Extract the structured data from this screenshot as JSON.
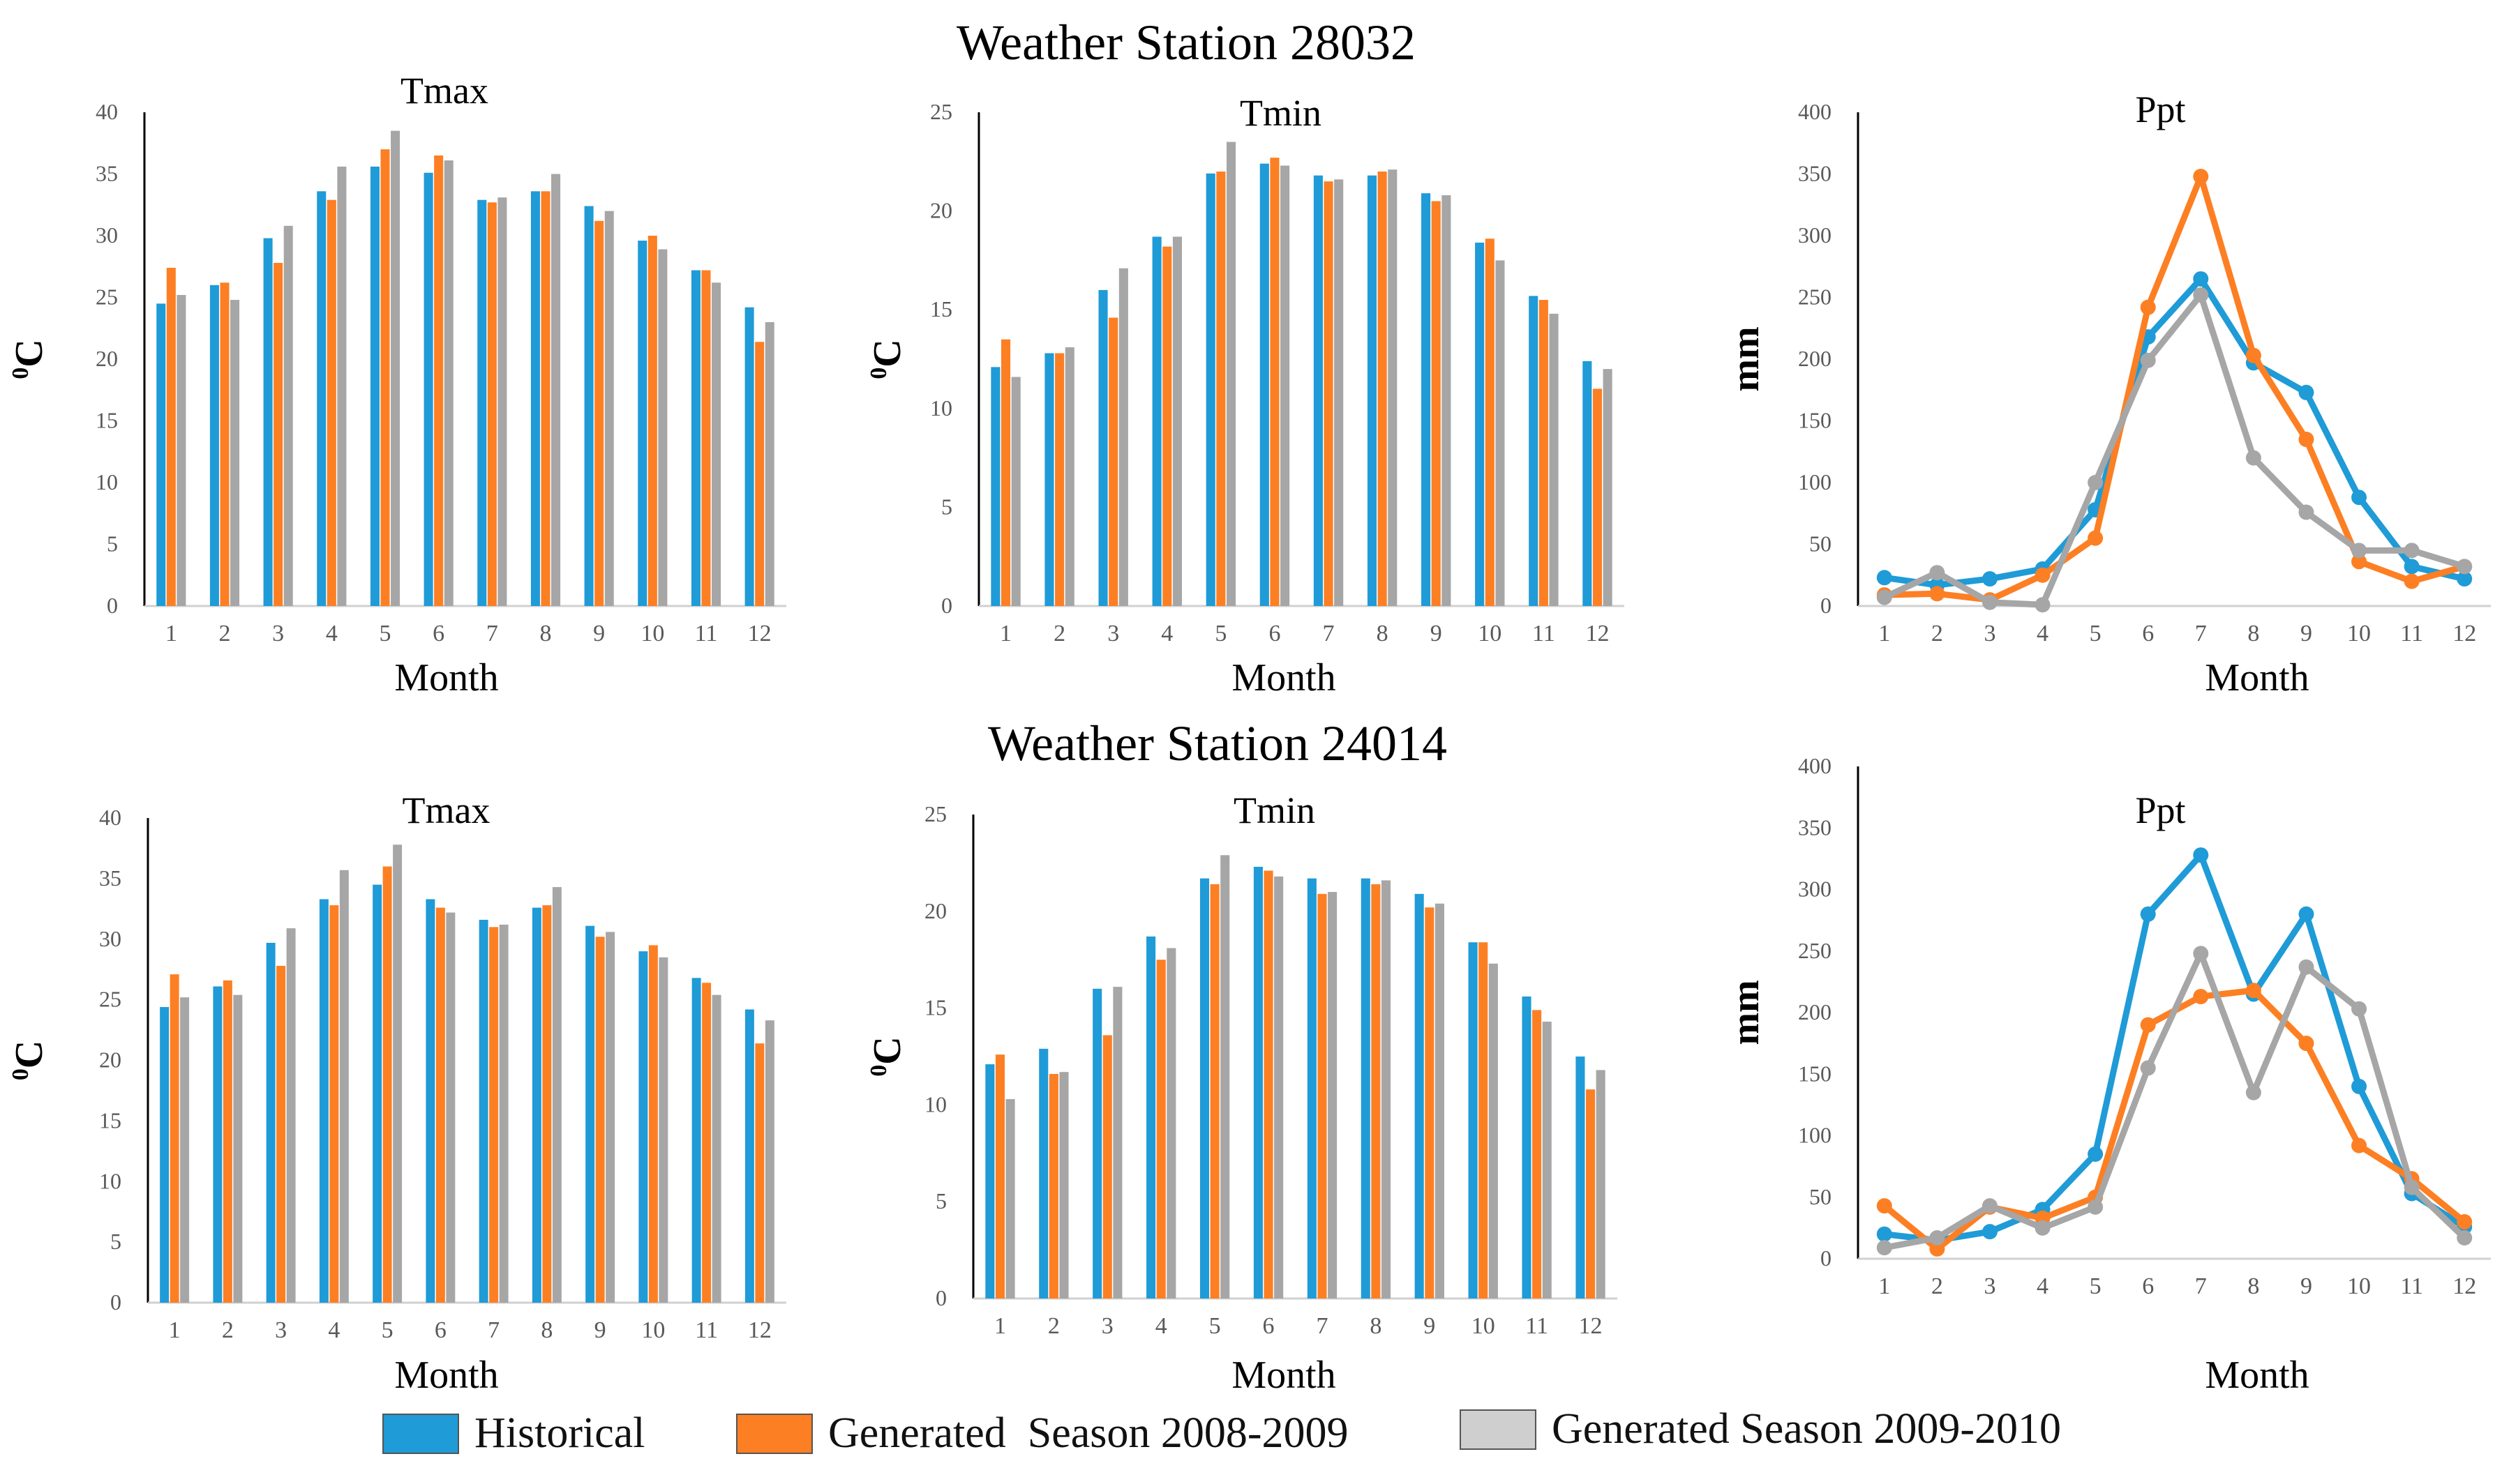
{
  "titles": [
    "Weather Station 28032",
    "Weather Station 24014"
  ],
  "legend": [
    {
      "label": "Historical",
      "color": "#1f9bd7"
    },
    {
      "label": "Generated  Season 2008-2009",
      "color": "#fd7f23"
    },
    {
      "label": "Generated Season 2009-2010",
      "color": "#cfcfcf"
    }
  ],
  "chart_data": [
    {
      "station": "Weather Station 28032",
      "type": "bar",
      "title": "Tmax",
      "xlabel": "Month",
      "ylabel": "0C",
      "ylim": [
        0,
        40
      ],
      "yticks": [
        0,
        5,
        10,
        15,
        20,
        25,
        30,
        35,
        40
      ],
      "categories": [
        "1",
        "2",
        "3",
        "4",
        "5",
        "6",
        "7",
        "8",
        "9",
        "10",
        "11",
        "12"
      ],
      "series": [
        {
          "name": "Historical",
          "values": [
            24.5,
            26,
            29.8,
            33.6,
            35.6,
            35.1,
            32.9,
            33.6,
            32.4,
            29.6,
            27.2,
            24.2
          ]
        },
        {
          "name": "Generated Season 2008-2009",
          "values": [
            27.4,
            26.2,
            27.8,
            32.9,
            37,
            36.5,
            32.7,
            33.6,
            31.2,
            30,
            27.2,
            21.4
          ]
        },
        {
          "name": "Generated Season 2009-2010",
          "values": [
            25.2,
            24.8,
            30.8,
            35.6,
            38.5,
            36.1,
            33.1,
            35,
            32,
            28.9,
            26.2,
            23
          ]
        }
      ]
    },
    {
      "station": "Weather Station 28032",
      "type": "bar",
      "title": "Tmin",
      "xlabel": "Month",
      "ylabel": "0C",
      "ylim": [
        0,
        25
      ],
      "yticks": [
        0,
        5,
        10,
        15,
        20,
        25
      ],
      "categories": [
        "1",
        "2",
        "3",
        "4",
        "5",
        "6",
        "7",
        "8",
        "9",
        "10",
        "11",
        "12"
      ],
      "series": [
        {
          "name": "Historical",
          "values": [
            12.1,
            12.8,
            16,
            18.7,
            21.9,
            22.4,
            21.8,
            21.8,
            20.9,
            18.4,
            15.7,
            12.4
          ]
        },
        {
          "name": "Generated Season 2008-2009",
          "values": [
            13.5,
            12.8,
            14.6,
            18.2,
            22,
            22.7,
            21.5,
            22,
            20.5,
            18.6,
            15.5,
            11
          ]
        },
        {
          "name": "Generated Season 2009-2010",
          "values": [
            11.6,
            13.1,
            17.1,
            18.7,
            23.5,
            22.3,
            21.6,
            22.1,
            20.8,
            17.5,
            14.8,
            12
          ]
        }
      ]
    },
    {
      "station": "Weather Station 28032",
      "type": "line",
      "title": "Ppt",
      "xlabel": "Month",
      "ylabel": "mm",
      "ylim": [
        0,
        400
      ],
      "yticks": [
        0,
        50,
        100,
        150,
        200,
        250,
        300,
        350,
        400
      ],
      "categories": [
        "1",
        "2",
        "3",
        "4",
        "5",
        "6",
        "7",
        "8",
        "9",
        "10",
        "11",
        "12"
      ],
      "series": [
        {
          "name": "Historical",
          "values": [
            23,
            17,
            22,
            30,
            78,
            218,
            265,
            197,
            173,
            88,
            32,
            22
          ]
        },
        {
          "name": "Generated Season 2008-2009",
          "values": [
            9,
            10,
            5,
            25,
            55,
            242,
            348,
            203,
            135,
            36,
            20,
            32
          ]
        },
        {
          "name": "Generated Season 2009-2010",
          "values": [
            7,
            27,
            3,
            1,
            100,
            199,
            252,
            120,
            76,
            45,
            45,
            32
          ]
        }
      ]
    },
    {
      "station": "Weather Station 24014",
      "type": "bar",
      "title": "Tmax",
      "xlabel": "Month",
      "ylabel": "0C",
      "ylim": [
        0,
        40
      ],
      "yticks": [
        0,
        5,
        10,
        15,
        20,
        25,
        30,
        35,
        40
      ],
      "categories": [
        "1",
        "2",
        "3",
        "4",
        "5",
        "6",
        "7",
        "8",
        "9",
        "10",
        "11",
        "12"
      ],
      "series": [
        {
          "name": "Historical",
          "values": [
            24.4,
            26.1,
            29.7,
            33.3,
            34.5,
            33.3,
            31.6,
            32.6,
            31.1,
            29,
            26.8,
            24.2
          ]
        },
        {
          "name": "Generated Season 2008-2009",
          "values": [
            27.1,
            26.6,
            27.8,
            32.8,
            36,
            32.6,
            31,
            32.8,
            30.2,
            29.5,
            26.4,
            21.4
          ]
        },
        {
          "name": "Generated Season 2009-2010",
          "values": [
            25.2,
            25.4,
            30.9,
            35.7,
            37.8,
            32.2,
            31.2,
            34.3,
            30.6,
            28.5,
            25.4,
            23.3
          ]
        }
      ]
    },
    {
      "station": "Weather Station 24014",
      "type": "bar",
      "title": "Tmin",
      "xlabel": "Month",
      "ylabel": "0C",
      "ylim": [
        0,
        25
      ],
      "yticks": [
        0,
        5,
        10,
        15,
        20,
        25
      ],
      "categories": [
        "1",
        "2",
        "3",
        "4",
        "5",
        "6",
        "7",
        "8",
        "9",
        "10",
        "11",
        "12"
      ],
      "series": [
        {
          "name": "Historical",
          "values": [
            12.1,
            12.9,
            16,
            18.7,
            21.7,
            22.3,
            21.7,
            21.7,
            20.9,
            18.4,
            15.6,
            12.5
          ]
        },
        {
          "name": "Generated Season 2008-2009",
          "values": [
            12.6,
            11.6,
            13.6,
            17.5,
            21.4,
            22.1,
            20.9,
            21.4,
            20.2,
            18.4,
            14.9,
            10.8
          ]
        },
        {
          "name": "Generated Season 2009-2010",
          "values": [
            10.3,
            11.7,
            16.1,
            18.1,
            22.9,
            21.8,
            21,
            21.6,
            20.4,
            17.3,
            14.3,
            11.8
          ]
        }
      ]
    },
    {
      "station": "Weather Station 24014",
      "type": "line",
      "title": "Ppt",
      "xlabel": "Month",
      "ylabel": "mm",
      "ylim": [
        0,
        400
      ],
      "yticks": [
        0,
        50,
        100,
        150,
        200,
        250,
        300,
        350,
        400
      ],
      "categories": [
        "1",
        "2",
        "3",
        "4",
        "5",
        "6",
        "7",
        "8",
        "9",
        "10",
        "11",
        "12"
      ],
      "series": [
        {
          "name": "Historical",
          "values": [
            20,
            15,
            22,
            40,
            85,
            280,
            328,
            215,
            280,
            140,
            53,
            26
          ]
        },
        {
          "name": "Generated Season 2008-2009",
          "values": [
            43,
            8,
            42,
            33,
            50,
            190,
            213,
            218,
            175,
            92,
            65,
            30
          ]
        },
        {
          "name": "Generated Season 2009-2010",
          "values": [
            9,
            17,
            43,
            25,
            42,
            155,
            248,
            135,
            237,
            203,
            58,
            17
          ]
        }
      ]
    }
  ]
}
